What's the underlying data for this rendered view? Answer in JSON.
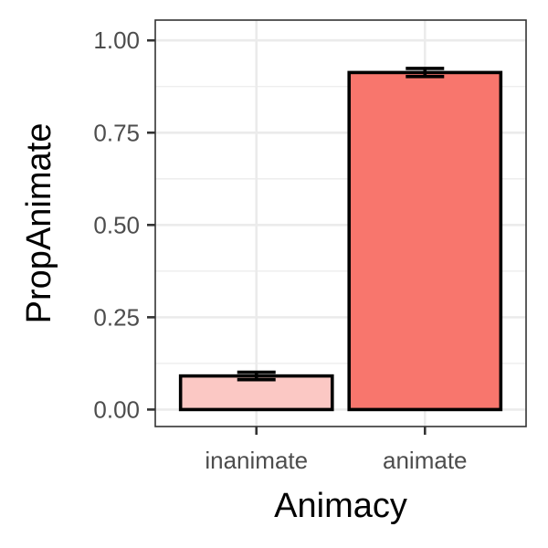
{
  "chart_data": {
    "type": "bar",
    "categories": [
      "inanimate",
      "animate"
    ],
    "values": [
      0.091,
      0.913
    ],
    "error_bars": [
      {
        "low": 0.081,
        "high": 0.101
      },
      {
        "low": 0.902,
        "high": 0.924
      }
    ],
    "fill_colors": [
      "#fbc8c4",
      "#f8766d"
    ],
    "xlabel": "Animacy",
    "ylabel": "PropAnimate",
    "ylim": [
      -0.046,
      1.055
    ],
    "y_ticks": [
      0.0,
      0.25,
      0.5,
      0.75,
      1.0
    ],
    "y_tick_labels": [
      "0.00",
      "0.25",
      "0.50",
      "0.75",
      "1.00"
    ],
    "grid": true,
    "legend": "none"
  }
}
